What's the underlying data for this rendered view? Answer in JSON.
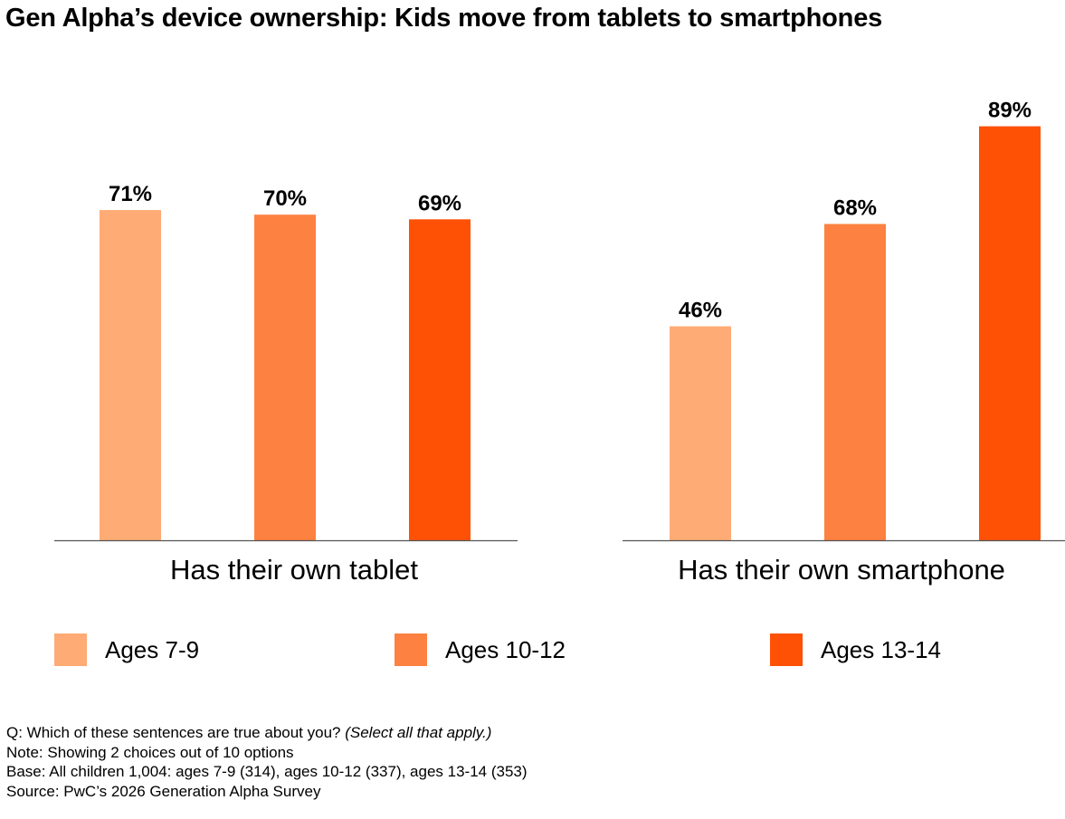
{
  "title": "Gen Alpha’s device ownership: Kids move from tablets to smartphones",
  "chart_data": {
    "type": "bar",
    "categories": [
      "Has their own tablet",
      "Has their own smartphone"
    ],
    "series": [
      {
        "name": "Ages 7-9",
        "color": "#FEAB75",
        "values": [
          71,
          46
        ]
      },
      {
        "name": "Ages 10-12",
        "color": "#FD8140",
        "values": [
          70,
          68
        ]
      },
      {
        "name": "Ages 13-14",
        "color": "#FE5106",
        "values": [
          69,
          89
        ]
      }
    ],
    "value_suffix": "%",
    "ylim": [
      0,
      100
    ],
    "grid": false,
    "legend_position": "bottom"
  },
  "footnotes": {
    "question_prefix": "Q: Which of these sentences are true about you? ",
    "question_italic": "(Select all that apply.)",
    "note": "Note: Showing 2 choices out of 10 options",
    "base": "Base: All children 1,004: ages 7-9 (314), ages 10-12 (337), ages 13-14 (353)",
    "source": "Source: PwC’s 2026 Generation Alpha Survey"
  }
}
